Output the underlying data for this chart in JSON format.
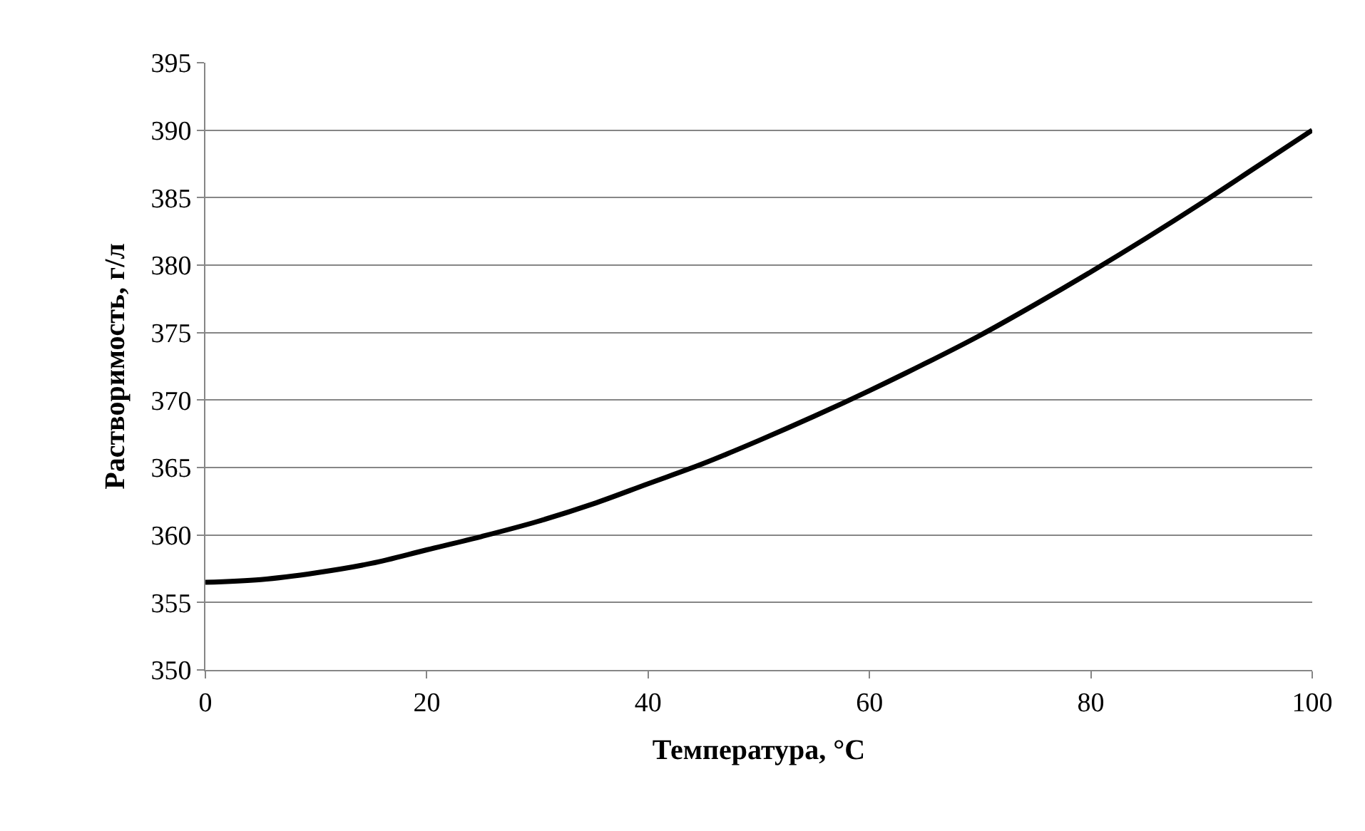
{
  "chart_data": {
    "type": "line",
    "xlabel": "Температура, °C",
    "ylabel": "Растворимость, г/л",
    "x": [
      0,
      5,
      10,
      15,
      20,
      25,
      30,
      35,
      40,
      45,
      50,
      55,
      60,
      65,
      70,
      75,
      80,
      85,
      90,
      95,
      100
    ],
    "series": [
      {
        "color": "#000000",
        "values": [
          356.5,
          356.7,
          357.2,
          357.9,
          358.9,
          359.9,
          361.0,
          362.3,
          363.8,
          365.3,
          367.0,
          368.8,
          370.7,
          372.7,
          374.8,
          377.1,
          379.5,
          382.0,
          384.6,
          387.3,
          390.0
        ]
      }
    ],
    "xlim": [
      0,
      100
    ],
    "xticks": [
      0,
      20,
      40,
      60,
      80,
      100
    ],
    "ylim": [
      350,
      395
    ],
    "yticks": [
      350,
      355,
      360,
      365,
      370,
      375,
      380,
      385,
      390,
      395
    ],
    "grid": "y",
    "marker": "none",
    "line_style": "solid"
  }
}
